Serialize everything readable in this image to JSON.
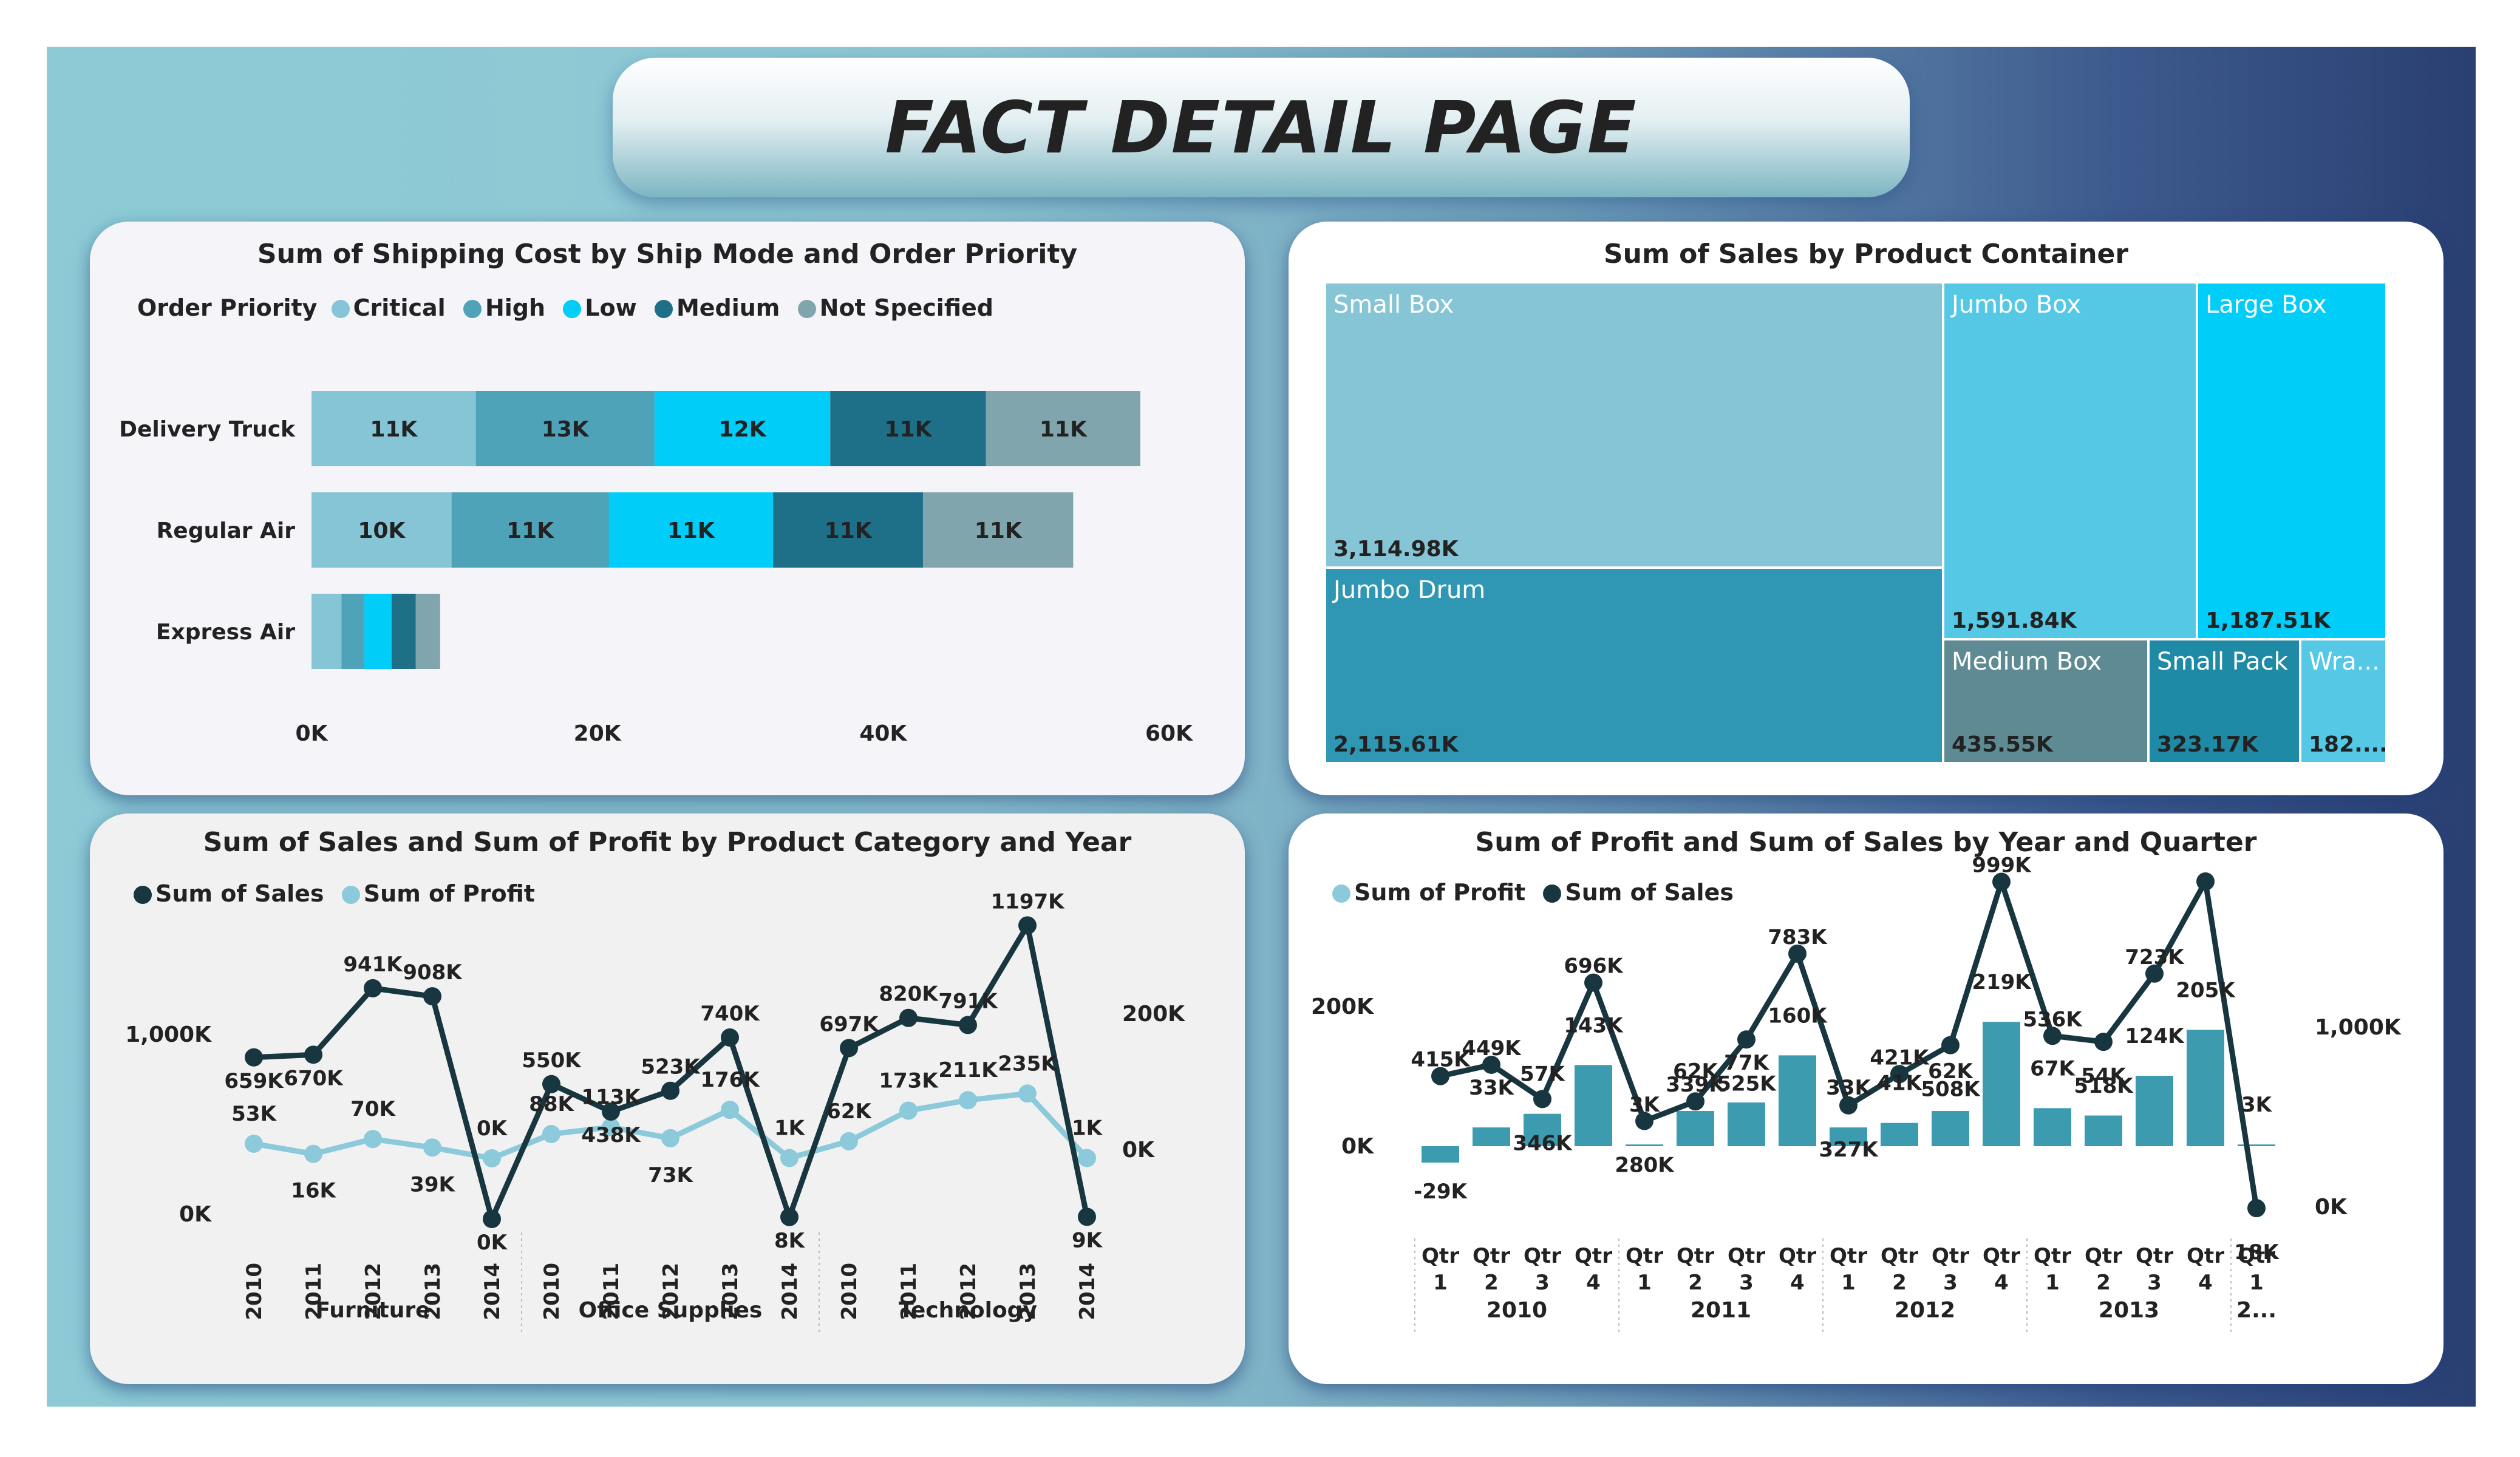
{
  "page": {
    "title": "FACT DETAIL PAGE"
  },
  "colors": {
    "critical": "#85c5d5",
    "high": "#4ea3b8",
    "low": "#00cdf8",
    "medium": "#1e6f88",
    "not_specified": "#81a5ad",
    "sales_line": "#18363f",
    "profit_line": "#8ccadb",
    "bar": "#3d9bb0"
  },
  "shipping": {
    "title": "Sum of Shipping Cost by Ship Mode and Order Priority",
    "legend_title": "Order Priority",
    "legend": [
      "Critical",
      "High",
      "Low",
      "Medium",
      "Not Specified"
    ],
    "chart_data": {
      "type": "bar",
      "orientation": "horizontal",
      "stacked": true,
      "categories": [
        "Delivery Truck",
        "Regular Air",
        "Express Air"
      ],
      "series": [
        {
          "name": "Critical",
          "values": [
            11500,
            9800,
            2100
          ],
          "labels": [
            "11K",
            "10K",
            ""
          ]
        },
        {
          "name": "High",
          "values": [
            12500,
            11000,
            1600
          ],
          "labels": [
            "13K",
            "11K",
            ""
          ]
        },
        {
          "name": "Low",
          "values": [
            12300,
            11500,
            1900
          ],
          "labels": [
            "12K",
            "11K",
            ""
          ]
        },
        {
          "name": "Medium",
          "values": [
            10900,
            10500,
            1700
          ],
          "labels": [
            "11K",
            "11K",
            ""
          ]
        },
        {
          "name": "Not Specified",
          "values": [
            10800,
            10500,
            1700
          ],
          "labels": [
            "11K",
            "11K",
            ""
          ]
        }
      ],
      "x_ticks": [
        "0K",
        "20K",
        "40K",
        "60K"
      ],
      "xlim": [
        0,
        60000
      ]
    }
  },
  "container": {
    "title": "Sum of Sales by Product Container",
    "chart_data": {
      "type": "treemap",
      "items": [
        {
          "name": "Small Box",
          "value": 3114.98,
          "label": "3,114.98K"
        },
        {
          "name": "Jumbo Drum",
          "value": 2115.61,
          "label": "2,115.61K"
        },
        {
          "name": "Jumbo Box",
          "value": 1591.84,
          "label": "1,591.84K"
        },
        {
          "name": "Large Box",
          "value": 1187.51,
          "label": "1,187.51K"
        },
        {
          "name": "Medium Box",
          "value": 435.55,
          "label": "435.55K"
        },
        {
          "name": "Small Pack",
          "value": 323.17,
          "label": "323.17K"
        },
        {
          "name": "Wra...",
          "value": 182,
          "label": "182...."
        }
      ]
    }
  },
  "category": {
    "title": "Sum of Sales and Sum of Profit by Product Category and Year",
    "legend": [
      "Sum of Sales",
      "Sum of Profit"
    ],
    "chart_data": {
      "type": "line",
      "groups": [
        "Furniture",
        "Office Supplies",
        "Technology"
      ],
      "years": [
        "2010",
        "2011",
        "2012",
        "2013",
        "2014"
      ],
      "left_ticks": [
        "1,000K",
        "0K"
      ],
      "right_ticks": [
        "200K",
        "0K"
      ],
      "series": [
        {
          "name": "Sum of Sales",
          "axis": "left",
          "values": [
            659,
            670,
            941,
            908,
            0,
            550,
            438,
            523,
            740,
            8,
            697,
            820,
            791,
            1197,
            9
          ],
          "labels": [
            "659K",
            "670K",
            "941K",
            "908K",
            "0K",
            "550K",
            "438K",
            "523K",
            "740K",
            "8K",
            "697K",
            "820K",
            "791K",
            "1197K",
            "9K"
          ]
        },
        {
          "name": "Sum of Profit",
          "axis": "right",
          "values": [
            53,
            16,
            70,
            39,
            0,
            88,
            113,
            73,
            176,
            1,
            62,
            173,
            211,
            235,
            1
          ],
          "labels": [
            "53K",
            "16K",
            "70K",
            "39K",
            "0K",
            "88K",
            "113K",
            "73K",
            "176K",
            "1K",
            "62K",
            "173K",
            "211K",
            "235K",
            "1K"
          ]
        }
      ]
    }
  },
  "quarter": {
    "title": "Sum of Profit and Sum of Sales by Year and Quarter",
    "legend": [
      "Sum of Profit",
      "Sum of Sales"
    ],
    "chart_data": {
      "type": "bar+line",
      "quarters": [
        [
          "Qtr",
          "1"
        ],
        [
          "Qtr",
          "2"
        ],
        [
          "Qtr",
          "3"
        ],
        [
          "Qtr",
          "4"
        ],
        [
          "Qtr",
          "1"
        ],
        [
          "Qtr",
          "2"
        ],
        [
          "Qtr",
          "3"
        ],
        [
          "Qtr",
          "4"
        ],
        [
          "Qtr",
          "1"
        ],
        [
          "Qtr",
          "2"
        ],
        [
          "Qtr",
          "3"
        ],
        [
          "Qtr",
          "4"
        ],
        [
          "Qtr",
          "1"
        ],
        [
          "Qtr",
          "2"
        ],
        [
          "Qtr",
          "3"
        ],
        [
          "Qtr",
          "4"
        ],
        [
          "Qtr",
          "1"
        ]
      ],
      "years": [
        "2010",
        "2011",
        "2012",
        "2013",
        "2..."
      ],
      "left_ticks": [
        "200K",
        "0K"
      ],
      "right_ticks": [
        "1,000K",
        "0K"
      ],
      "profit": {
        "name": "Sum of Profit",
        "values": [
          -29,
          33,
          57,
          143,
          3,
          62,
          77,
          160,
          33,
          41,
          62,
          219,
          67,
          54,
          124,
          205,
          3
        ],
        "labels": [
          "-29K",
          "33K",
          "57K",
          "143K",
          "3K",
          "62K",
          "77K",
          "160K",
          "33K",
          "41K",
          "62K",
          "219K",
          "67K",
          "54K",
          "124K",
          "205K",
          "3K"
        ]
      },
      "sales": {
        "name": "Sum of Sales",
        "values": [
          415,
          449,
          346,
          696,
          280,
          339,
          525,
          783,
          327,
          421,
          508,
          999,
          536,
          518,
          723,
          1000,
          18
        ],
        "labels": [
          "415K",
          "449K",
          "346K",
          "696K",
          "280K",
          "339K",
          "525K",
          "783K",
          "327K",
          "421K",
          "508K",
          "999K",
          "536K",
          "518K",
          "723K",
          "",
          "18K"
        ]
      }
    }
  }
}
